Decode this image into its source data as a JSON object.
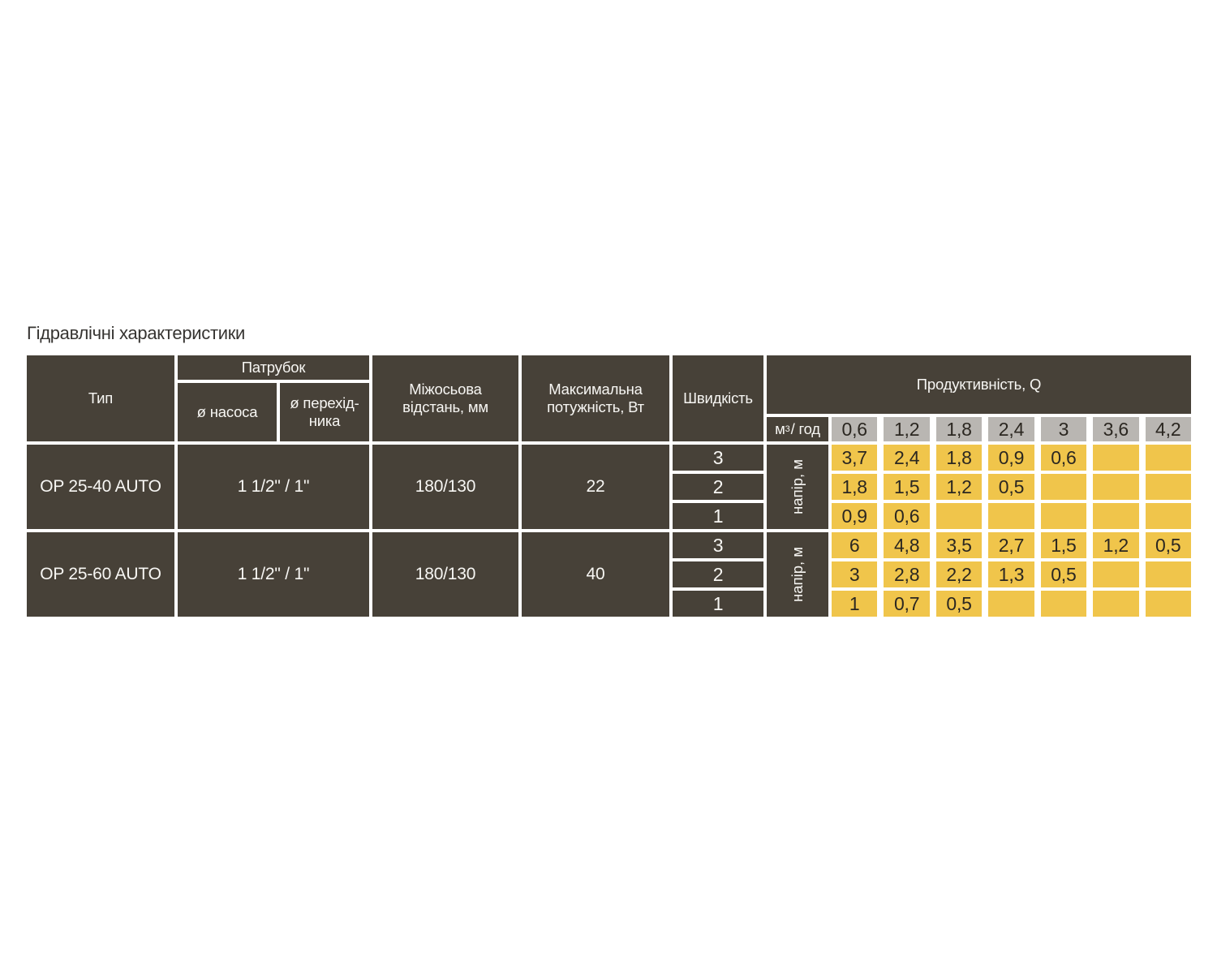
{
  "title": "Гідравлічні характеристики",
  "colors": {
    "dark": "#474138",
    "yellow": "#f0c54b",
    "gray": "#b9b6b2",
    "light-text": "#f7f6f3",
    "dark-text": "#2b2721",
    "title-text": "#363431",
    "bg": "#ffffff"
  },
  "table": {
    "header": {
      "type": "Тип",
      "patrubok": "Патрубок",
      "pump_diameter": "ø насоса",
      "adapter_diameter": "ø перехід-ника",
      "center_distance": "Міжосьова відстань, мм",
      "max_power": "Максимальна потужність, Вт",
      "speed": "Швидкість",
      "productivity": "Продуктивність, Q",
      "flow_unit_base": "м",
      "flow_unit_sup": "3",
      "flow_unit_rest": "/ год",
      "flow_values": [
        "0,6",
        "1,2",
        "1,8",
        "2,4",
        "3",
        "3,6",
        "4,2"
      ]
    },
    "pumps": [
      {
        "type": "OP 25-40 AUTO",
        "patrubok": "1 1/2\" / 1\"",
        "center_distance": "180/130",
        "max_power": "22",
        "speeds": [
          "3",
          "2",
          "1"
        ],
        "head_label": "напір, м",
        "head_rows": [
          [
            "3,7",
            "2,4",
            "1,8",
            "0,9",
            "0,6",
            "",
            ""
          ],
          [
            "1,8",
            "1,5",
            "1,2",
            "0,5",
            "",
            "",
            ""
          ],
          [
            "0,9",
            "0,6",
            "",
            "",
            "",
            "",
            ""
          ]
        ]
      },
      {
        "type": "OP 25-60 AUTO",
        "patrubok": "1 1/2\" / 1\"",
        "center_distance": "180/130",
        "max_power": "40",
        "speeds": [
          "3",
          "2",
          "1"
        ],
        "head_label": "напір, м",
        "head_rows": [
          [
            "6",
            "4,8",
            "3,5",
            "2,7",
            "1,5",
            "1,2",
            "0,5"
          ],
          [
            "3",
            "2,8",
            "2,2",
            "1,3",
            "0,5",
            "",
            ""
          ],
          [
            "1",
            "0,7",
            "0,5",
            "",
            "",
            "",
            ""
          ]
        ]
      }
    ]
  }
}
